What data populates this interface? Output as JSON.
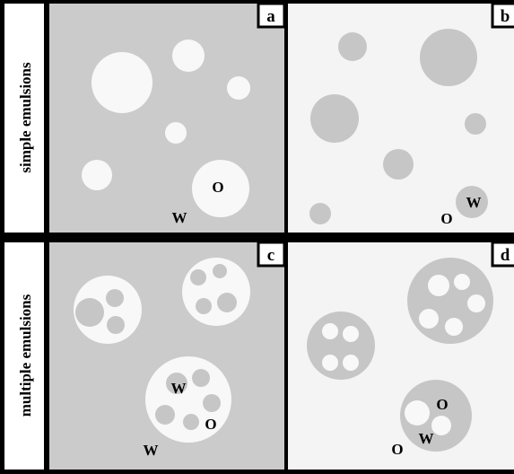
{
  "row_labels": [
    "simple emulsions",
    "multiple emulsions"
  ],
  "panels": [
    {
      "label": "a",
      "texts": [
        "O",
        "W"
      ]
    },
    {
      "label": "b",
      "texts": [
        "O",
        "W"
      ]
    },
    {
      "label": "c",
      "texts": [
        "W",
        "O",
        "W"
      ]
    },
    {
      "label": "d",
      "texts": [
        "O",
        "W",
        "O"
      ]
    }
  ]
}
